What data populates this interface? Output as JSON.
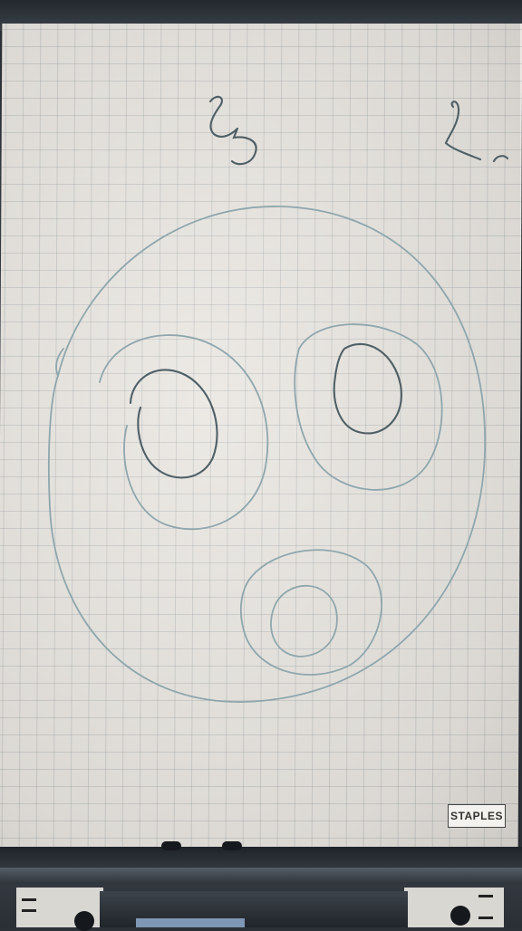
{
  "photo": {
    "subject": "flip-chart-sketch",
    "handwriting": {
      "label_left": "Z5",
      "label_right": "Zr"
    },
    "logo_text": "STAPLES",
    "ink_color": "#8fa6ad",
    "paper_color": "#e9e6e1",
    "grid_color": "#a8b2b6"
  }
}
